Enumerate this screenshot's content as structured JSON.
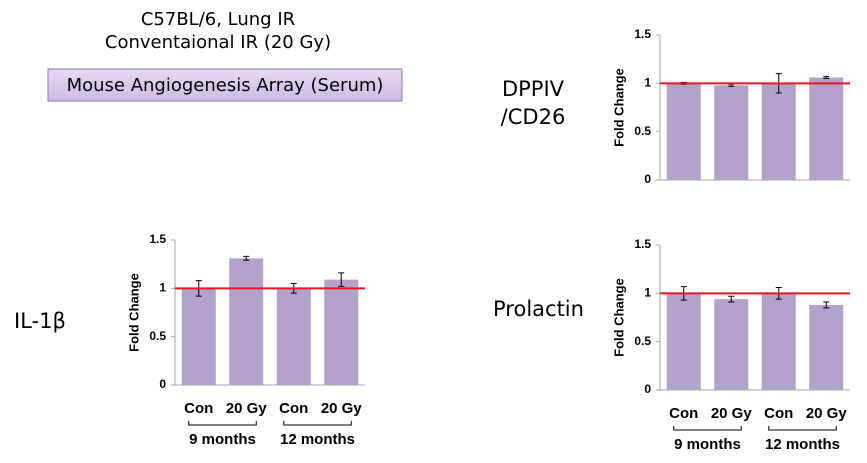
{
  "header": {
    "line1": "C57BL/6, Lung IR",
    "line2": "Conventaional IR (20 Gy)",
    "box": "Mouse Angiogenesis Array (Serum)"
  },
  "chart_data": [
    {
      "type": "bar",
      "title": [
        "DPPIV",
        "/CD26"
      ],
      "ylabel": "Fold Change",
      "categories": [
        null,
        null,
        null,
        null
      ],
      "values": [
        1.0,
        0.98,
        1.0,
        1.06
      ],
      "errors": [
        0.01,
        0.01,
        0.1,
        0.01
      ],
      "color": "#b2a3cb",
      "reference_line": 1,
      "reference_color": "#e8161c",
      "ylim": [
        0,
        1.5
      ],
      "yticks": [
        0,
        0.5,
        1,
        1.5
      ]
    },
    {
      "type": "bar",
      "title": [
        "IL-1β"
      ],
      "ylabel": "Fold Change",
      "categories": [
        "Con",
        "20 Gy",
        "Con",
        "20 Gy"
      ],
      "groups": [
        "9 months",
        "12 months"
      ],
      "values": [
        1.0,
        1.31,
        1.0,
        1.09
      ],
      "errors": [
        0.08,
        0.02,
        0.05,
        0.07
      ],
      "color": "#b2a3cb",
      "reference_line": 1,
      "reference_color": "#e8161c",
      "ylim": [
        0,
        1.5
      ],
      "yticks": [
        0,
        0.5,
        1,
        1.5
      ]
    },
    {
      "type": "bar",
      "title": [
        "Prolactin"
      ],
      "ylabel": "Fold Change",
      "categories": [
        "Con",
        "20 Gy",
        "Con",
        "20 Gy"
      ],
      "groups": [
        "9 months",
        "12 months"
      ],
      "values": [
        1.0,
        0.94,
        1.0,
        0.88
      ],
      "errors": [
        0.07,
        0.03,
        0.06,
        0.03
      ],
      "color": "#b2a3cb",
      "reference_line": 1,
      "reference_color": "#e8161c",
      "ylim": [
        0,
        1.5
      ],
      "yticks": [
        0,
        0.5,
        1,
        1.5
      ]
    }
  ]
}
